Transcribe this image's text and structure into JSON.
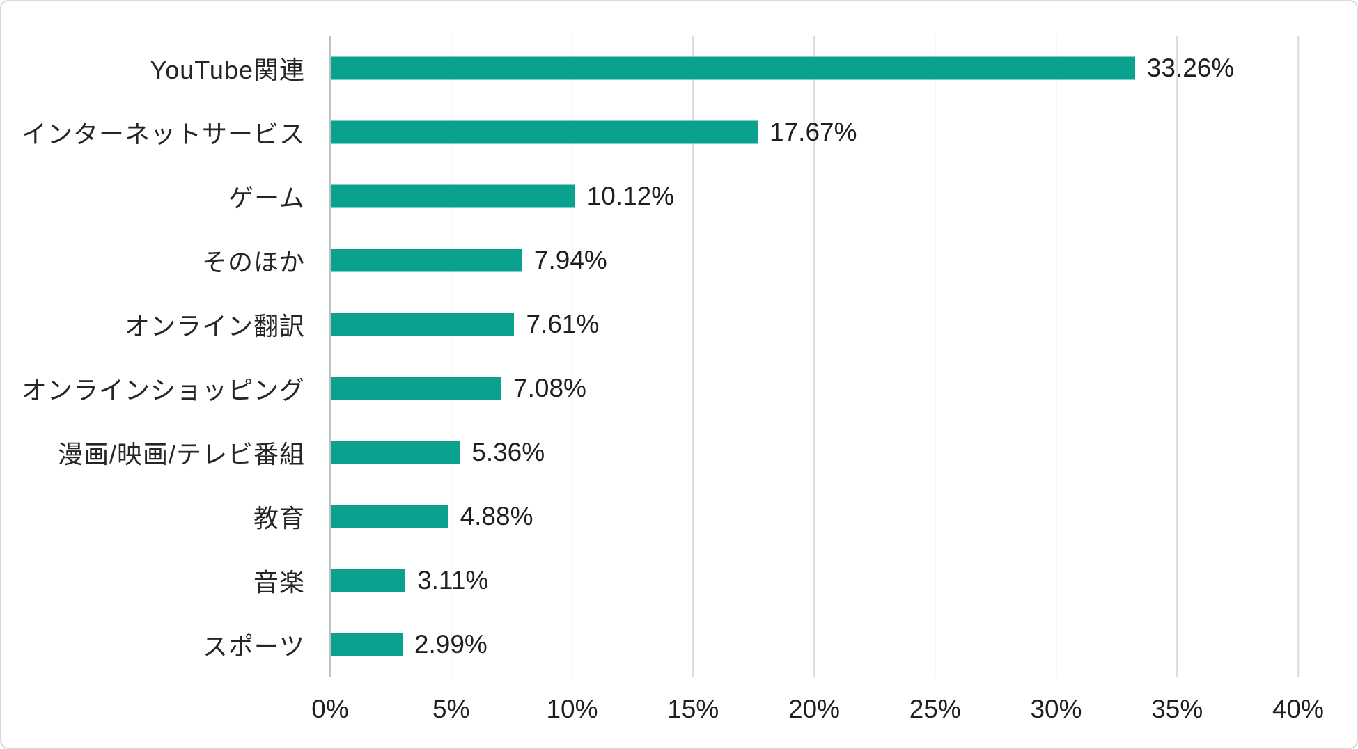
{
  "colors": {
    "bar": "#0aa28e",
    "gridline": "#d9d9d9",
    "axis_line": "#bfbfbf",
    "text": "#262626",
    "frame_border": "#d9d9d9",
    "background": "#ffffff"
  },
  "chart_data": {
    "type": "bar",
    "orientation": "horizontal",
    "title": "",
    "xlabel": "",
    "ylabel": "",
    "grid": true,
    "legend": false,
    "xlim": [
      0,
      40
    ],
    "x_tick_values": [
      0,
      5,
      10,
      15,
      20,
      25,
      30,
      35,
      40
    ],
    "x_tick_labels": [
      "0%",
      "5%",
      "10%",
      "15%",
      "20%",
      "25%",
      "30%",
      "35%",
      "40%"
    ],
    "categories": [
      "YouTube関連",
      "インターネットサービス",
      "ゲーム",
      "そのほか",
      "オンライン翻訳",
      "オンラインショッピング",
      "漫画/映画/テレビ番組",
      "教育",
      "音楽",
      "スポーツ"
    ],
    "values": [
      33.26,
      17.67,
      10.12,
      7.94,
      7.61,
      7.08,
      5.36,
      4.88,
      3.11,
      2.99
    ],
    "value_labels": [
      "33.26%",
      "17.67%",
      "10.12%",
      "7.94%",
      "7.61%",
      "7.08%",
      "5.36%",
      "4.88%",
      "3.11%",
      "2.99%"
    ]
  }
}
